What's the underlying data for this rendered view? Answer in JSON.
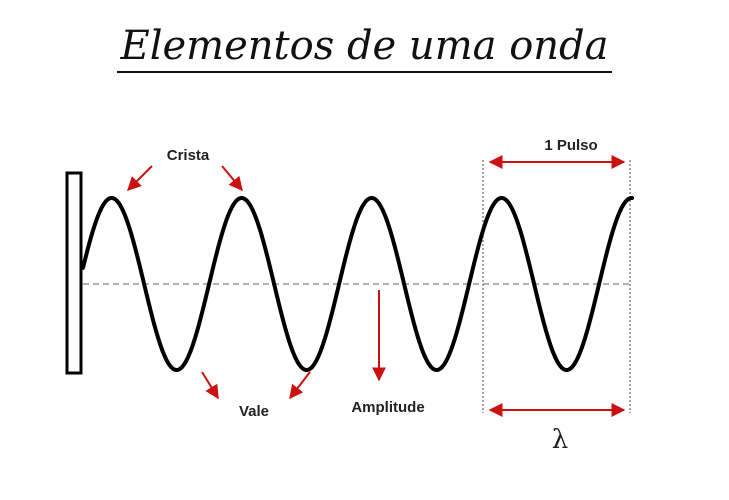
{
  "title": "Elementos de uma onda",
  "labels": {
    "crista": "Crista",
    "vale": "Vale",
    "amplitude": "Amplitude",
    "pulso": "1 Pulso",
    "lambda": "λ"
  },
  "colors": {
    "wave": "#000000",
    "axis": "#999999",
    "arrow": "#cc1111",
    "text": "#222222"
  }
}
